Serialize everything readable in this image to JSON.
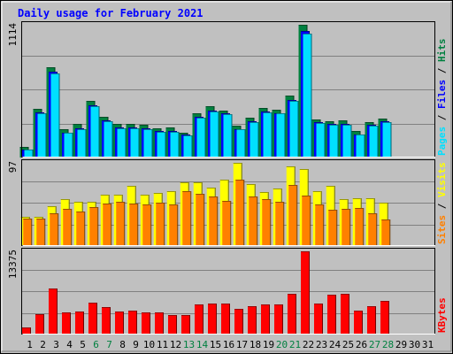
{
  "chart_data": {
    "type": "bar",
    "title": "Daily usage for February 2021",
    "days": [
      "1",
      "2",
      "3",
      "4",
      "5",
      "6",
      "7",
      "8",
      "9",
      "10",
      "11",
      "12",
      "13",
      "14",
      "15",
      "16",
      "17",
      "18",
      "19",
      "20",
      "21",
      "22",
      "23",
      "24",
      "25",
      "26",
      "27",
      "28",
      "29",
      "30",
      "31"
    ],
    "weekend_days": [
      6,
      7,
      13,
      14,
      20,
      21,
      27,
      28
    ],
    "panels": [
      {
        "id": "hits-files-pages",
        "max_label": "1114",
        "ymax": 1114,
        "axis_label_parts": [
          {
            "text": "Pages",
            "color": "#00e0ff"
          },
          {
            "text": " / ",
            "color": "#000000"
          },
          {
            "text": "Files",
            "color": "#0000ff"
          },
          {
            "text": " / ",
            "color": "#000000"
          },
          {
            "text": "Hits",
            "color": "#008040"
          }
        ],
        "series": [
          {
            "name": "Hits",
            "color": "#008040",
            "values": [
              90,
              407,
              758,
              234,
              279,
              476,
              344,
              283,
              280,
              276,
              246,
              252,
              211,
              374,
              428,
              397,
              269,
              334,
              416,
              404,
              517,
              1114,
              318,
              305,
              311,
              222,
              297,
              324,
              0,
              0,
              0
            ]
          },
          {
            "name": "Files",
            "color": "#0000ff",
            "values": [
              70,
              380,
              720,
              210,
              245,
              440,
              312,
              255,
              250,
              245,
              225,
              225,
              190,
              342,
              395,
              370,
              240,
              305,
              385,
              375,
              482,
              1060,
              295,
              280,
              285,
              195,
              275,
              305,
              0,
              0,
              0
            ]
          },
          {
            "name": "Pages",
            "color": "#00e0ff",
            "values": [
              65,
              370,
              705,
              205,
              238,
              430,
              305,
              248,
              243,
              238,
              218,
              219,
              184,
              335,
              388,
              362,
              234,
              298,
              378,
              368,
              475,
              1040,
              288,
              273,
              278,
              190,
              268,
              298,
              0,
              0,
              0
            ]
          }
        ]
      },
      {
        "id": "visits-sites",
        "max_label": "97",
        "ymax": 97,
        "axis_label_parts": [
          {
            "text": "Sites",
            "color": "#ff8000"
          },
          {
            "text": " / ",
            "color": "#000000"
          },
          {
            "text": "Visits",
            "color": "#ffff00"
          }
        ],
        "series": [
          {
            "name": "Visits",
            "color": "#ffff00",
            "values": [
              34,
              34,
              46,
              55,
              52,
              52,
              60,
              60,
              70,
              60,
              62,
              64,
              74,
              74,
              68,
              77,
              97,
              72,
              63,
              67,
              93,
              90,
              64,
              70,
              55,
              56,
              56,
              51,
              0,
              0,
              0
            ]
          },
          {
            "name": "Sites",
            "color": "#ff8000",
            "values": [
              32,
              32,
              38,
              43,
              40,
              45,
              50,
              52,
              50,
              49,
              51,
              49,
              64,
              61,
              58,
              53,
              77,
              58,
              55,
              52,
              71,
              59,
              49,
              42,
              43,
              44,
              38,
              31,
              0,
              0,
              0
            ]
          }
        ]
      },
      {
        "id": "kbytes",
        "max_label": "13375",
        "ymax": 13375,
        "axis_label_parts": [
          {
            "text": "KBytes",
            "color": "#ff0000"
          }
        ],
        "series": [
          {
            "name": "KBytes",
            "color": "#ff0000",
            "values": [
              1150,
              3300,
              7400,
              3600,
              3700,
              5100,
              4400,
              3700,
              3800,
              3600,
              3500,
              3150,
              3100,
              4900,
              5000,
              5050,
              4100,
              4600,
              4800,
              4900,
              6600,
              13375,
              5050,
              6400,
              6500,
              3900,
              4500,
              5400,
              0,
              0,
              0
            ]
          }
        ]
      }
    ]
  }
}
